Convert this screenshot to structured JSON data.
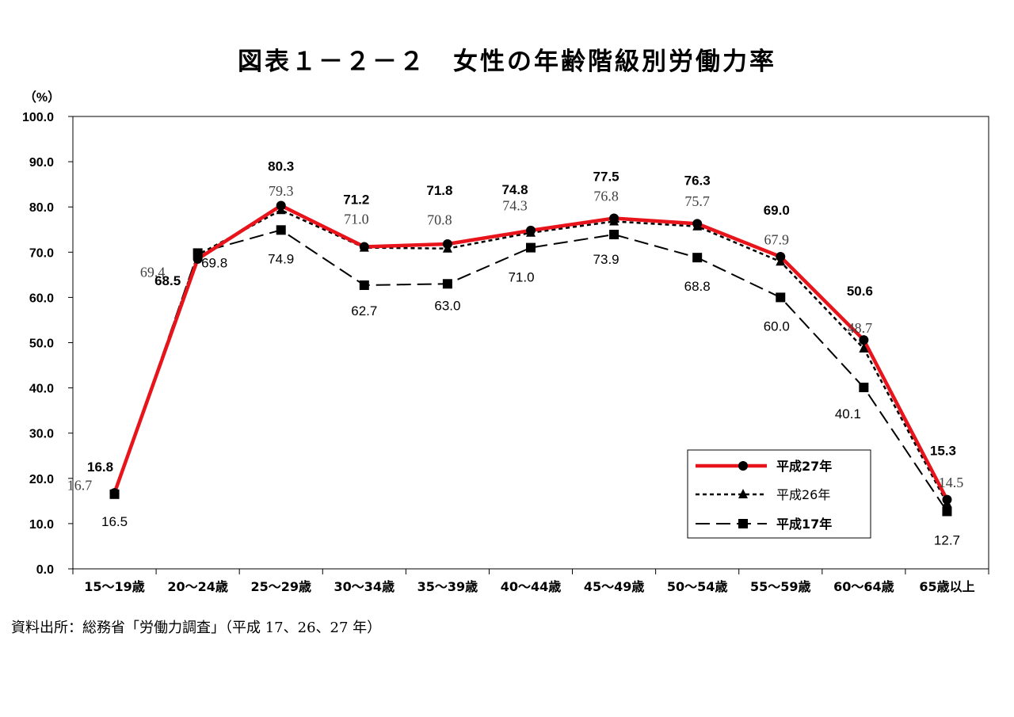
{
  "title": "図表１－２－２　女性の年齢階級別労働力率",
  "source": "資料出所：総務省「労働力調査」（平成 17、26、27 年）",
  "chart_data": {
    "type": "line",
    "yunit": "（%）",
    "ylim": [
      0,
      100
    ],
    "yticks": [
      "0.0",
      "10.0",
      "20.0",
      "30.0",
      "40.0",
      "50.0",
      "60.0",
      "70.0",
      "80.0",
      "90.0",
      "100.0"
    ],
    "categories": [
      "15～19歳",
      "20～24歳",
      "25～29歳",
      "30～34歳",
      "35～39歳",
      "40～44歳",
      "45～49歳",
      "50～54歳",
      "55～59歳",
      "60～64歳",
      "65歳以上"
    ],
    "series": [
      {
        "name": "平成27年",
        "values": [
          16.8,
          68.5,
          80.3,
          71.2,
          71.8,
          74.8,
          77.5,
          76.3,
          69.0,
          50.6,
          15.3
        ],
        "labels": [
          "16.8",
          "68.5",
          "80.3",
          "71.2",
          "71.8",
          "74.8",
          "77.5",
          "76.3",
          "69.0",
          "50.6",
          "15.3"
        ],
        "color": "#e8141c",
        "marker": "circle",
        "style": "solid-thick"
      },
      {
        "name": "平成26年",
        "values": [
          16.7,
          69.4,
          79.3,
          71.0,
          70.8,
          74.3,
          76.8,
          75.7,
          67.9,
          48.7,
          14.5
        ],
        "labels": [
          "16.7",
          "69.4",
          "79.3",
          "71.0",
          "70.8",
          "74.3",
          "76.8",
          "75.7",
          "67.9",
          "48.7",
          "14.5"
        ],
        "color": "#000000",
        "marker": "triangle",
        "style": "dotted"
      },
      {
        "name": "平成17年",
        "values": [
          16.5,
          69.8,
          74.9,
          62.7,
          63.0,
          71.0,
          73.9,
          68.8,
          60.0,
          40.1,
          12.7
        ],
        "labels": [
          "16.5",
          "69.8",
          "74.9",
          "62.7",
          "63.0",
          "71.0",
          "73.9",
          "68.8",
          "60.0",
          "40.1",
          "12.7"
        ],
        "color": "#000000",
        "marker": "square",
        "style": "dashed"
      }
    ],
    "legend_position": "bottom-right",
    "grid": false
  }
}
